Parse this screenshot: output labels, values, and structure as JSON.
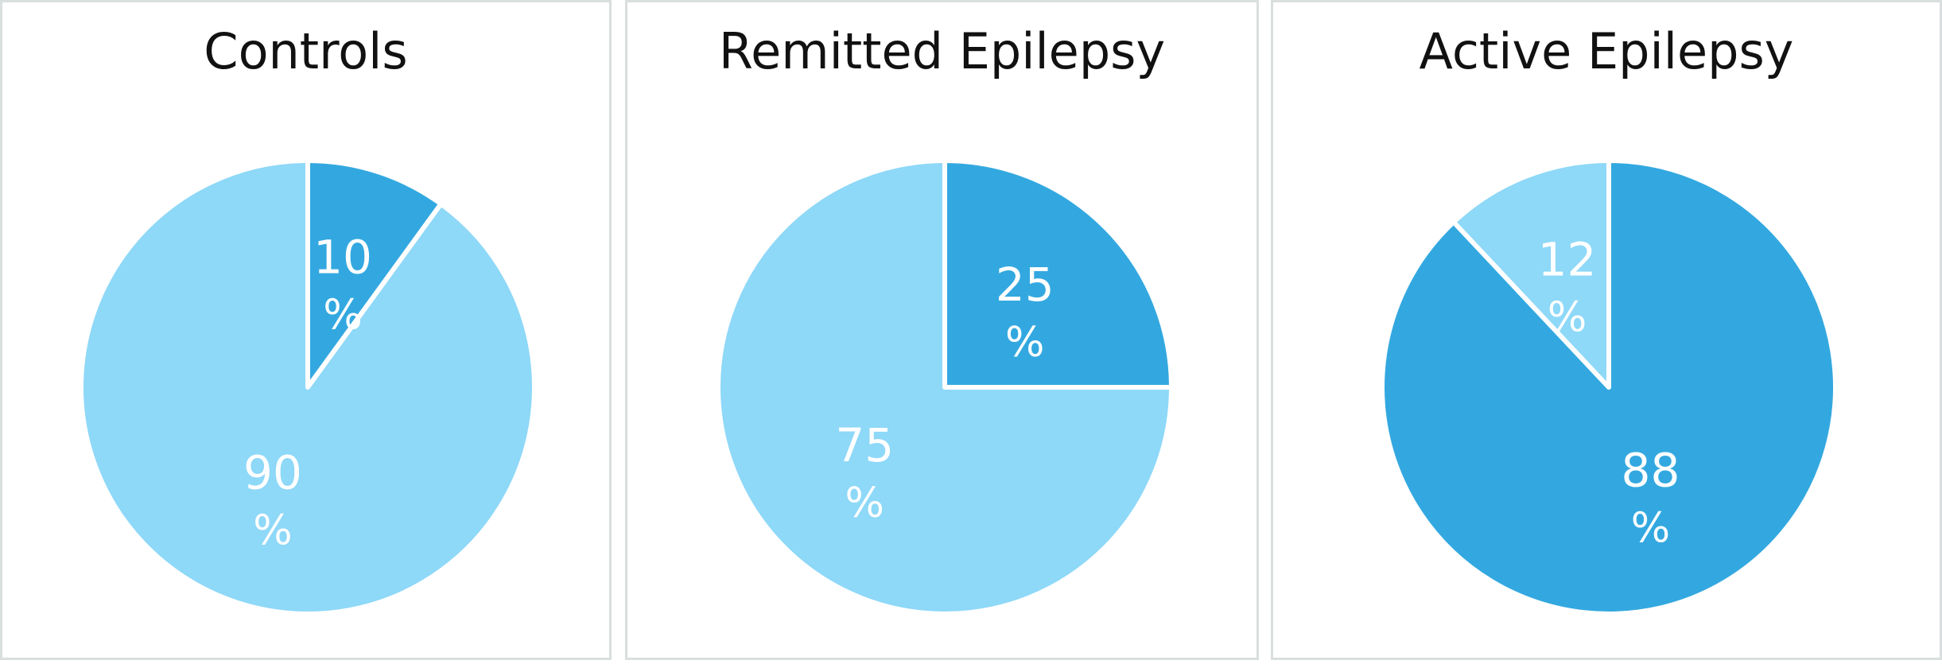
{
  "chart_data": [
    {
      "type": "pie",
      "title": "Controls",
      "slices": [
        {
          "value": 10,
          "number": "10",
          "unit": "%",
          "color": "#33a8e0"
        },
        {
          "value": 90,
          "number": "90",
          "unit": "%",
          "color": "#8ed8f8"
        }
      ]
    },
    {
      "type": "pie",
      "title": "Remitted Epilepsy",
      "slices": [
        {
          "value": 25,
          "number": "25",
          "unit": "%",
          "color": "#33a8e0"
        },
        {
          "value": 75,
          "number": "75",
          "unit": "%",
          "color": "#8ed8f8"
        }
      ]
    },
    {
      "type": "pie",
      "title": "Active Epilepsy",
      "slices": [
        {
          "value": 88,
          "number": "88",
          "unit": "%",
          "color": "#33a8e0"
        },
        {
          "value": 12,
          "number": "12",
          "unit": "%",
          "color": "#8ed8f8"
        }
      ]
    }
  ],
  "style": {
    "slice_border_color": "#ffffff",
    "panel_border_color": "#d9dede"
  }
}
